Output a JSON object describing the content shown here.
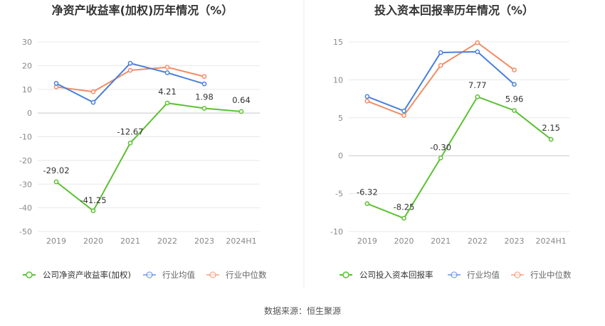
{
  "source": "数据来源：恒生聚源",
  "chart_data": [
    {
      "type": "line",
      "title": "净资产收益率(加权)历年情况（%）",
      "categories": [
        "2019",
        "2020",
        "2021",
        "2022",
        "2023",
        "2024H1"
      ],
      "ylim": [
        -50,
        30
      ],
      "yticks": [
        30,
        20,
        10,
        0,
        -10,
        -20,
        -30,
        -40,
        -50
      ],
      "ytick_labels": [
        "30",
        "20",
        "10",
        "0",
        "-10",
        "-20",
        "-30",
        "-40",
        "-50"
      ],
      "grid": true,
      "legend_position": "bottom-left",
      "series": [
        {
          "name": "公司净资产收益率(加权)",
          "color": "#5cc133",
          "values": [
            -29.02,
            -41.25,
            -12.67,
            4.21,
            1.98,
            0.64
          ],
          "labels": [
            "-29.02",
            "-41.25",
            "-12.67",
            "4.21",
            "1.98",
            "0.64"
          ]
        },
        {
          "name": "行业均值",
          "color": "#4a7fdc",
          "values": [
            12.5,
            4.5,
            21,
            17,
            12.3,
            null
          ]
        },
        {
          "name": "行业中位数",
          "color": "#f28c64",
          "values": [
            11,
            9,
            18,
            19.3,
            15.4,
            null
          ]
        }
      ]
    },
    {
      "type": "line",
      "title": "投入资本回报率历年情况（%）",
      "categories": [
        "2019",
        "2020",
        "2021",
        "2022",
        "2023",
        "2024H1"
      ],
      "ylim": [
        -10,
        15
      ],
      "yticks": [
        15,
        10,
        5,
        0,
        -5,
        -10
      ],
      "ytick_labels": [
        "15",
        "10",
        "5",
        "0",
        "-5",
        "-10"
      ],
      "grid": true,
      "legend_position": "bottom-left",
      "series": [
        {
          "name": "公司投入资本回报率",
          "color": "#5cc133",
          "values": [
            -6.32,
            -8.25,
            -0.3,
            7.77,
            5.96,
            2.15
          ],
          "labels": [
            "-6.32",
            "-8.25",
            "-0.30",
            "7.77",
            "5.96",
            "2.15"
          ]
        },
        {
          "name": "行业均值",
          "color": "#4a7fdc",
          "values": [
            7.8,
            5.9,
            13.6,
            13.7,
            9.4,
            null
          ]
        },
        {
          "name": "行业中位数",
          "color": "#f28c64",
          "values": [
            7.2,
            5.3,
            11.9,
            14.9,
            11.3,
            null
          ]
        }
      ]
    }
  ]
}
